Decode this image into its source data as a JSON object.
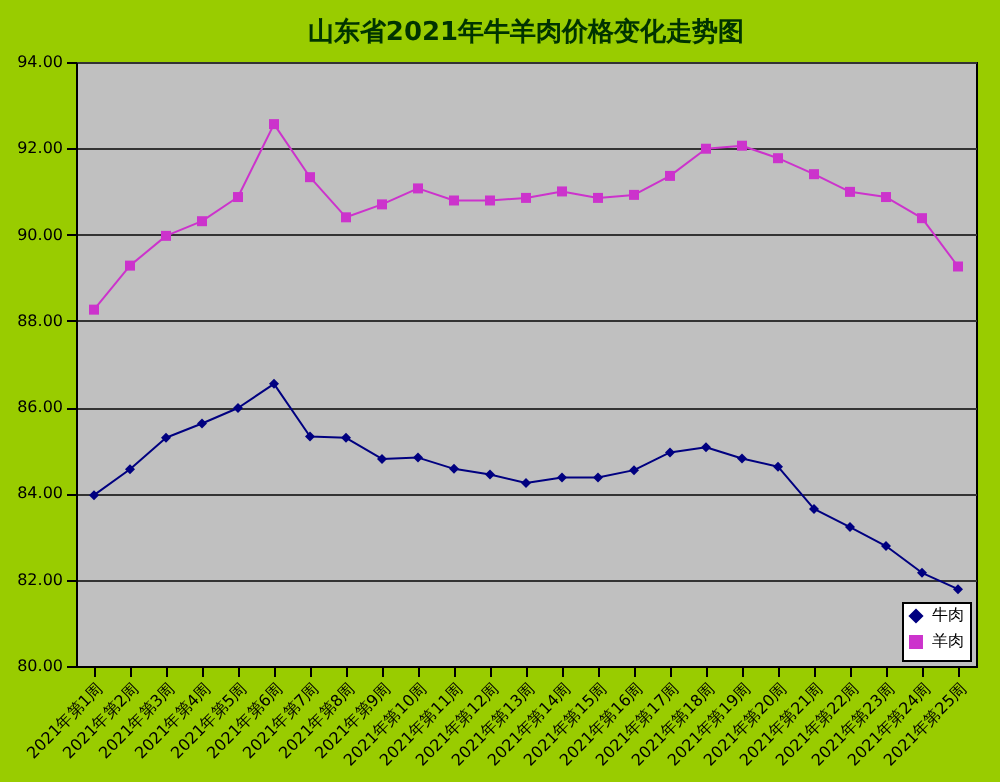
{
  "chart_data": {
    "type": "line",
    "title": "山东省2021年牛羊肉价格变化走势图",
    "categories": [
      "2021年第1周",
      "2021年第2周",
      "2021年第3周",
      "2021年第4周",
      "2021年第5周",
      "2021年第6周",
      "2021年第7周",
      "2021年第8周",
      "2021年第9周",
      "2021年第10周",
      "2021年第11周",
      "2021年第12周",
      "2021年第13周",
      "2021年第14周",
      "2021年第15周",
      "2021年第16周",
      "2021年第17周",
      "2021年第18周",
      "2021年第19周",
      "2021年第20周",
      "2021年第21周",
      "2021年第22周",
      "2021年第23周",
      "2021年第24周",
      "2021年第25周"
    ],
    "series": [
      {
        "name": "牛肉",
        "color": "#000080",
        "marker": "diamond",
        "values": [
          83.96,
          84.56,
          85.29,
          85.62,
          85.98,
          86.54,
          85.32,
          85.29,
          84.8,
          84.83,
          84.57,
          84.44,
          84.24,
          84.37,
          84.37,
          84.54,
          84.95,
          85.07,
          84.81,
          84.62,
          83.64,
          83.22,
          82.78,
          82.16,
          81.78
        ]
      },
      {
        "name": "羊肉",
        "color": "#cc33cc",
        "marker": "square",
        "values": [
          88.26,
          89.28,
          89.97,
          90.31,
          90.87,
          92.56,
          91.33,
          90.4,
          90.7,
          91.07,
          90.79,
          90.79,
          90.85,
          91.0,
          90.85,
          90.92,
          91.36,
          91.99,
          92.06,
          91.77,
          91.4,
          90.99,
          90.87,
          90.38,
          89.26
        ]
      }
    ],
    "ylim": [
      80,
      94
    ],
    "yticks": [
      {
        "value": 80,
        "label": "80.00"
      },
      {
        "value": 82,
        "label": "82.00"
      },
      {
        "value": 84,
        "label": "84.00"
      },
      {
        "value": 86,
        "label": "86.00"
      },
      {
        "value": 88,
        "label": "88.00"
      },
      {
        "value": 90,
        "label": "90.00"
      },
      {
        "value": 92,
        "label": "92.00"
      },
      {
        "value": 94,
        "label": "94.00"
      }
    ],
    "grid": "y",
    "legend": "bottom right",
    "line_style": "solid"
  }
}
